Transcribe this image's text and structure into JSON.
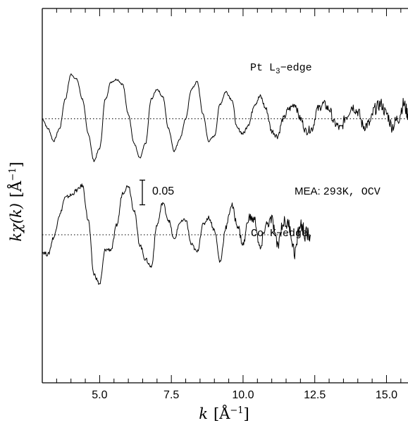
{
  "chart_data": {
    "type": "line",
    "xlabel_prefix": "k",
    "xlabel_unit": "[Å",
    "xlabel_exp": "−1",
    "xlabel_close": "]",
    "ylabel_prefix": "kχ(k)",
    "ylabel_unit": "[Å",
    "ylabel_exp": "−1",
    "ylabel_close": "]",
    "xlim": [
      3.0,
      15.75
    ],
    "xticks": [
      5.0,
      7.5,
      10.0,
      12.5,
      15.0
    ],
    "xtick_labels": [
      "5.0",
      "7.5",
      "10.0",
      "12.5",
      "15.0"
    ],
    "scale_bar": {
      "label": "0.05",
      "value": 0.05
    },
    "annotation": {
      "prefix": "MEA:",
      "text": "293K, OCV"
    },
    "series": [
      {
        "name": "Pt L₃−edge",
        "label_main": "Pt L",
        "label_sub": "3",
        "label_tail": "−edge",
        "offset": 0.145,
        "x": [
          3.0,
          3.2,
          3.4,
          3.6,
          3.8,
          4.0,
          4.2,
          4.4,
          4.6,
          4.8,
          5.0,
          5.2,
          5.4,
          5.6,
          5.8,
          6.0,
          6.2,
          6.4,
          6.6,
          6.8,
          7.0,
          7.2,
          7.4,
          7.6,
          7.8,
          8.0,
          8.2,
          8.4,
          8.6,
          8.8,
          9.0,
          9.2,
          9.4,
          9.6,
          9.8,
          10.0,
          10.2,
          10.4,
          10.6,
          10.8,
          11.0,
          11.2,
          11.4,
          11.6,
          11.8,
          12.0,
          12.2,
          12.4,
          12.6,
          12.8,
          13.0,
          13.2,
          13.4,
          13.6,
          13.8,
          14.0,
          14.2,
          14.4,
          14.6,
          14.8,
          15.0,
          15.2,
          15.4,
          15.6,
          15.75
        ],
        "y": [
          0.0,
          -0.02,
          -0.045,
          -0.02,
          0.04,
          0.09,
          0.08,
          0.04,
          -0.03,
          -0.085,
          -0.06,
          0.04,
          0.075,
          0.08,
          0.07,
          0.01,
          -0.05,
          -0.08,
          -0.05,
          0.04,
          0.06,
          0.045,
          -0.02,
          -0.065,
          -0.04,
          0.0,
          0.06,
          0.075,
          0.01,
          -0.045,
          -0.035,
          0.03,
          0.055,
          0.04,
          -0.02,
          -0.03,
          -0.01,
          0.03,
          0.045,
          0.02,
          -0.025,
          -0.035,
          0.0,
          0.02,
          0.03,
          0.0,
          -0.025,
          -0.02,
          0.02,
          0.03,
          0.02,
          -0.01,
          -0.02,
          0.005,
          0.025,
          0.015,
          -0.015,
          -0.01,
          0.02,
          0.03,
          0.01,
          -0.015,
          0.0,
          0.03,
          0.01
        ]
      },
      {
        "name": "Co K−edge",
        "label_main": "Co K−edge",
        "offset": -0.09,
        "x": [
          3.0,
          3.2,
          3.4,
          3.6,
          3.8,
          4.0,
          4.2,
          4.4,
          4.6,
          4.8,
          5.0,
          5.2,
          5.4,
          5.6,
          5.8,
          6.0,
          6.2,
          6.4,
          6.6,
          6.8,
          7.0,
          7.2,
          7.4,
          7.6,
          7.8,
          8.0,
          8.2,
          8.4,
          8.6,
          8.8,
          9.0,
          9.2,
          9.4,
          9.6,
          9.8,
          10.0,
          10.2,
          10.4,
          10.6,
          10.8,
          11.0,
          11.2,
          11.4,
          11.6,
          11.8,
          12.0,
          12.2,
          12.35
        ],
        "y": [
          -0.035,
          -0.04,
          -0.005,
          0.04,
          0.075,
          0.08,
          0.09,
          0.1,
          0.03,
          -0.08,
          -0.1,
          -0.03,
          -0.03,
          0.02,
          0.085,
          0.1,
          0.05,
          -0.02,
          -0.05,
          -0.065,
          0.02,
          0.065,
          0.03,
          -0.01,
          0.025,
          0.03,
          -0.02,
          -0.035,
          0.02,
          0.035,
          0.01,
          -0.055,
          0.015,
          0.06,
          0.02,
          -0.02,
          0.035,
          0.03,
          -0.03,
          0.02,
          0.03,
          -0.02,
          0.025,
          0.02,
          -0.035,
          0.02,
          0.0,
          0.0
        ]
      }
    ]
  }
}
